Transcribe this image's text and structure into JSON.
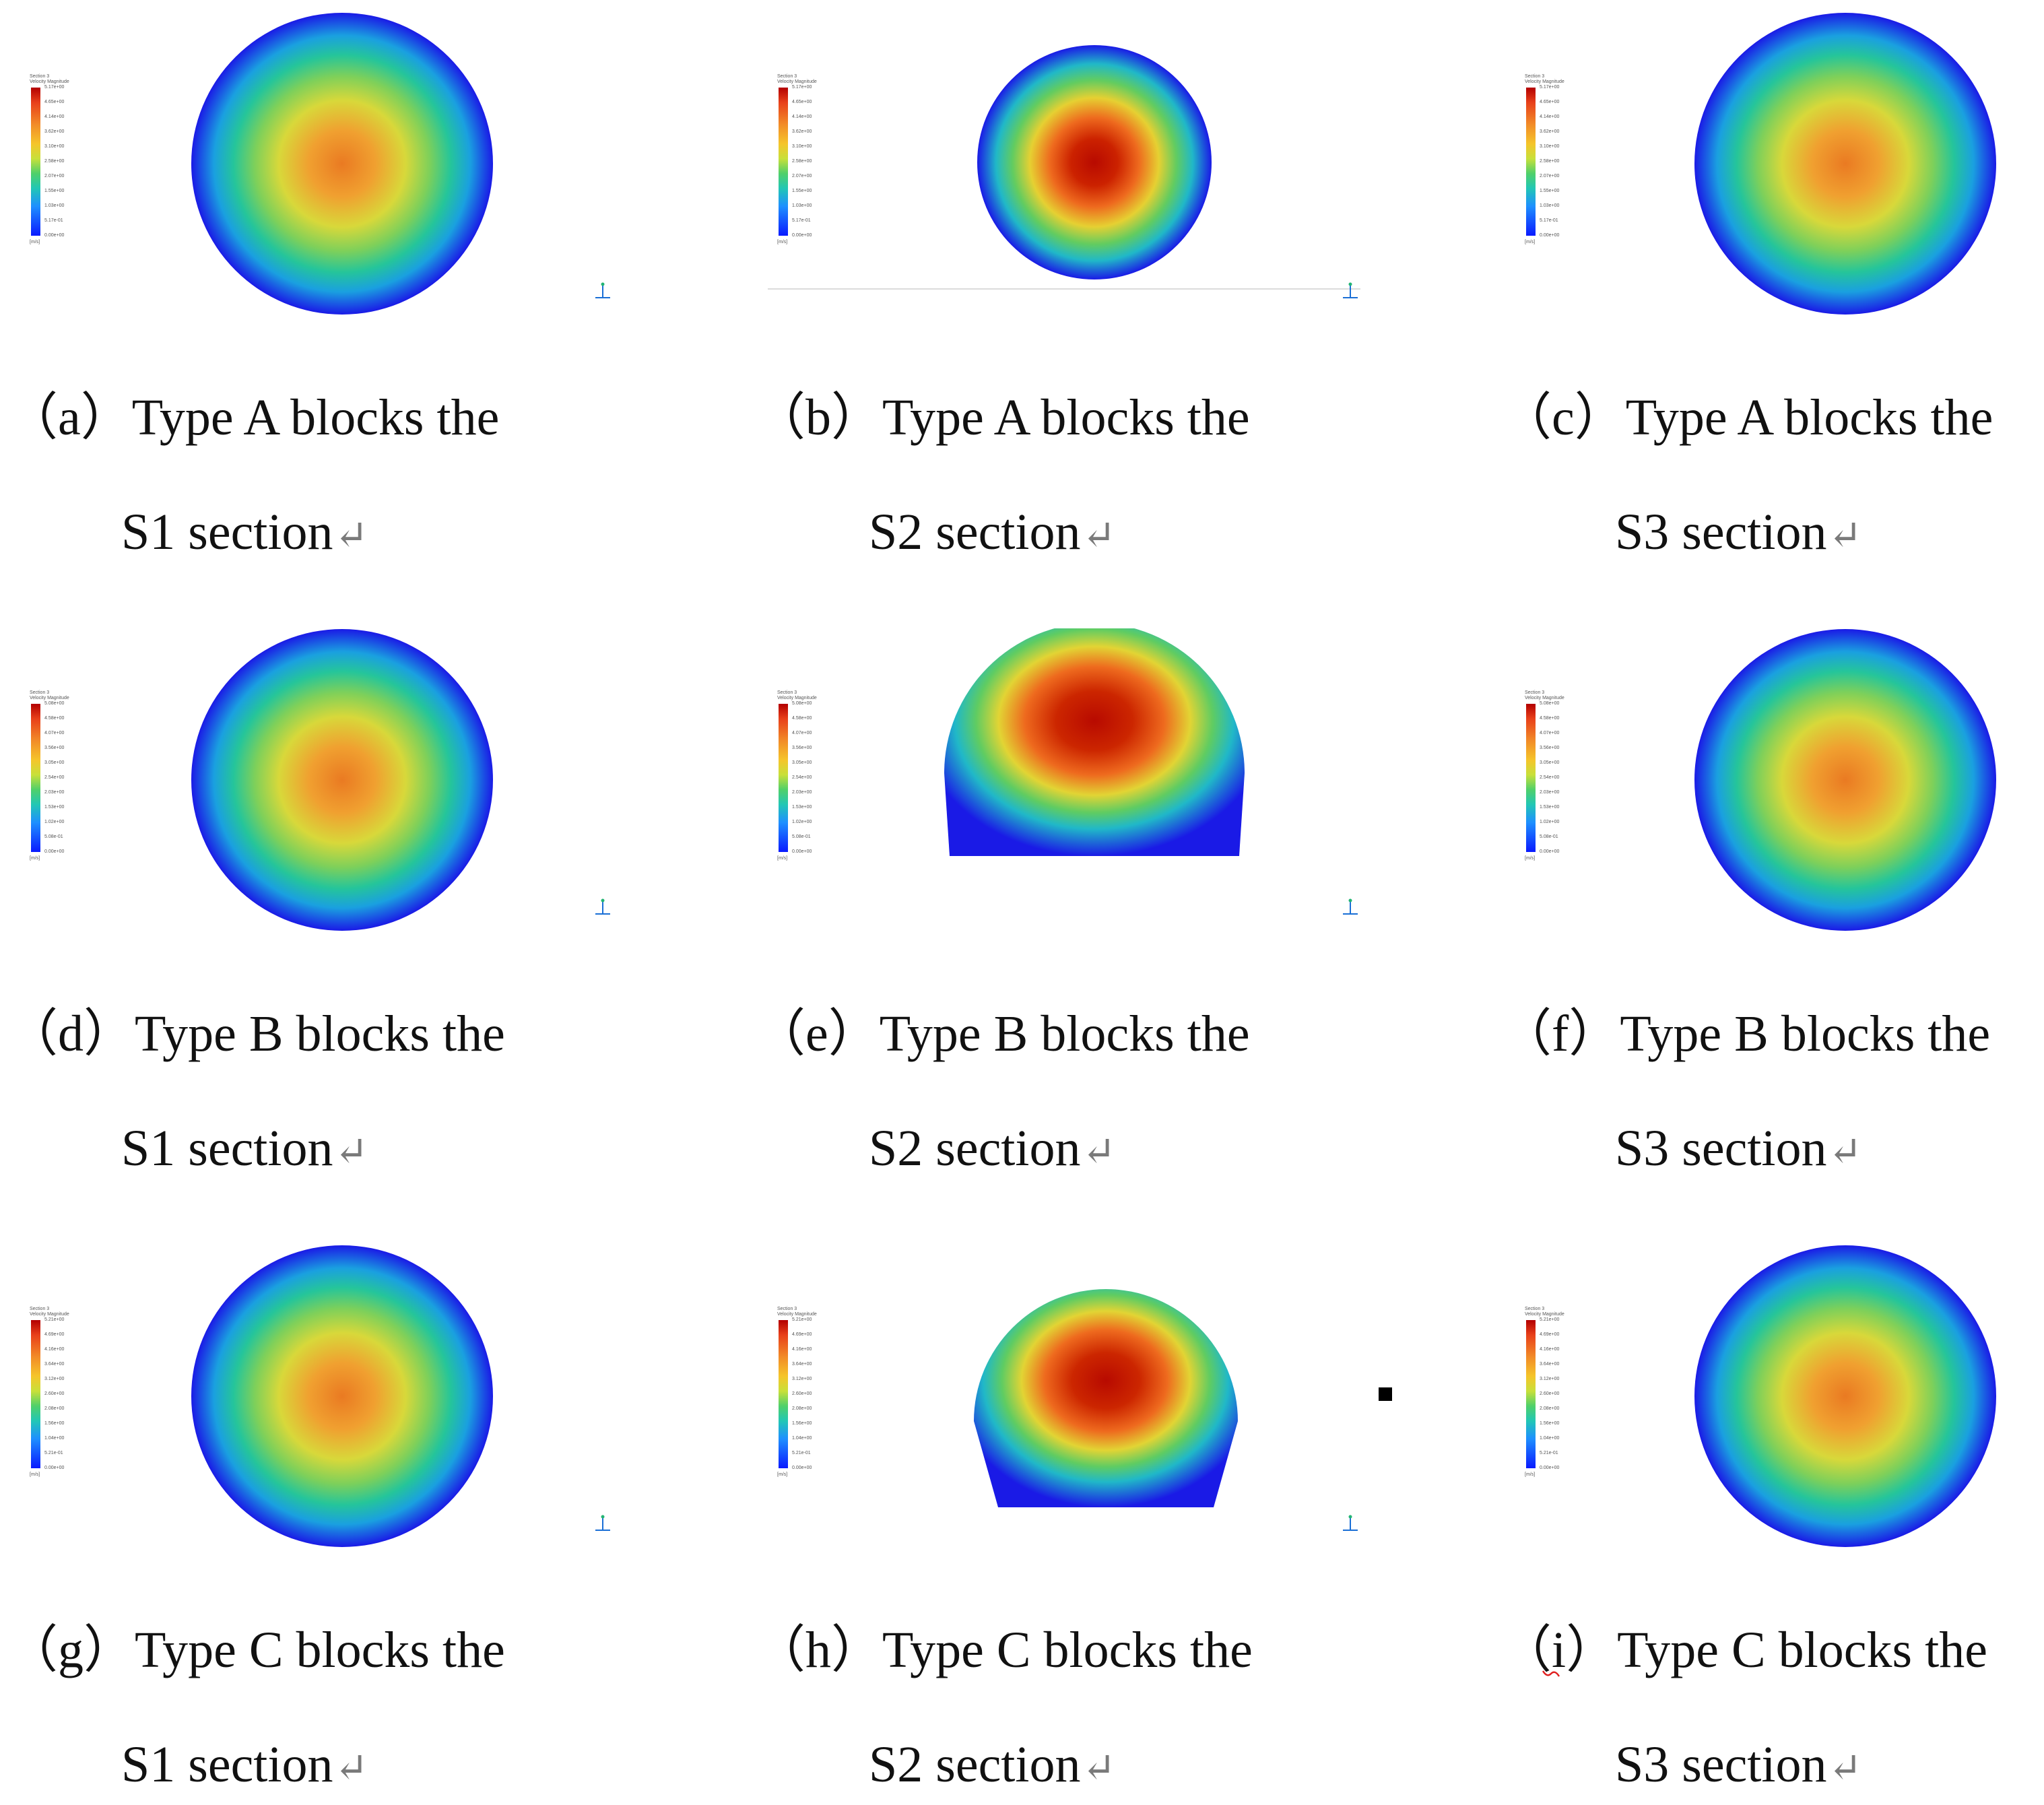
{
  "legend_title": "Section 3\nVelocity Magnitude",
  "legend_unit": "[m/s]",
  "panels": [
    {
      "id": "a",
      "shape": "circle",
      "legend": [
        "5.17e+00",
        "4.65e+00",
        "4.14e+00",
        "3.62e+00",
        "3.10e+00",
        "2.58e+00",
        "2.07e+00",
        "1.55e+00",
        "1.03e+00",
        "5.17e-01",
        "0.00e+00"
      ],
      "caption": {
        "label": "（a）",
        "line1": "Type A blocks the",
        "line2": "S1 section",
        "return_mark": "↵"
      }
    },
    {
      "id": "b",
      "shape": "circle-small",
      "legend": [
        "5.17e+00",
        "4.65e+00",
        "4.14e+00",
        "3.62e+00",
        "3.10e+00",
        "2.58e+00",
        "2.07e+00",
        "1.55e+00",
        "1.03e+00",
        "5.17e-01",
        "0.00e+00"
      ],
      "caption": {
        "label": "（b）",
        "line1": "Type A blocks the",
        "line2": "S2 section",
        "return_mark": "↵"
      }
    },
    {
      "id": "c",
      "shape": "circle",
      "legend": [
        "5.17e+00",
        "4.65e+00",
        "4.14e+00",
        "3.62e+00",
        "3.10e+00",
        "2.58e+00",
        "2.07e+00",
        "1.55e+00",
        "1.03e+00",
        "5.17e-01",
        "0.00e+00"
      ],
      "caption": {
        "label": "（c）",
        "line1": "Type A blocks the",
        "line2": "S3 section",
        "return_mark": "↵"
      }
    },
    {
      "id": "d",
      "shape": "circle",
      "legend": [
        "5.08e+00",
        "4.58e+00",
        "4.07e+00",
        "3.56e+00",
        "3.05e+00",
        "2.54e+00",
        "2.03e+00",
        "1.53e+00",
        "1.02e+00",
        "5.08e-01",
        "0.00e+00"
      ],
      "caption": {
        "label": "（d）",
        "line1": "Type B blocks the",
        "line2": "S1 section",
        "return_mark": "↵"
      }
    },
    {
      "id": "e",
      "shape": "dome-wide",
      "legend": [
        "5.08e+00",
        "4.58e+00",
        "4.07e+00",
        "3.56e+00",
        "3.05e+00",
        "2.54e+00",
        "2.03e+00",
        "1.53e+00",
        "1.02e+00",
        "5.08e-01",
        "0.00e+00"
      ],
      "caption": {
        "label": "（e）",
        "line1": "Type B blocks the",
        "line2": "S2 section",
        "return_mark": "↵"
      }
    },
    {
      "id": "f",
      "shape": "circle",
      "legend": [
        "5.08e+00",
        "4.58e+00",
        "4.07e+00",
        "3.56e+00",
        "3.05e+00",
        "2.54e+00",
        "2.03e+00",
        "1.53e+00",
        "1.02e+00",
        "5.08e-01",
        "0.00e+00"
      ],
      "caption": {
        "label": "（f）",
        "line1": "Type B blocks the",
        "line2": "S3 section",
        "return_mark": "↵"
      }
    },
    {
      "id": "g",
      "shape": "circle",
      "legend": [
        "5.21e+00",
        "4.69e+00",
        "4.16e+00",
        "3.64e+00",
        "3.12e+00",
        "2.60e+00",
        "2.08e+00",
        "1.56e+00",
        "1.04e+00",
        "5.21e-01",
        "0.00e+00"
      ],
      "caption": {
        "label": "（g）",
        "line1": "Type C blocks the",
        "line2": "S1 section",
        "return_mark": "↵"
      }
    },
    {
      "id": "h",
      "shape": "dome",
      "legend": [
        "5.21e+00",
        "4.69e+00",
        "4.16e+00",
        "3.64e+00",
        "3.12e+00",
        "2.60e+00",
        "2.08e+00",
        "1.56e+00",
        "1.04e+00",
        "5.21e-01",
        "0.00e+00"
      ],
      "caption": {
        "label": "（h）",
        "line1": "Type C blocks the",
        "line2": "S2 section",
        "return_mark": "↵"
      }
    },
    {
      "id": "i",
      "shape": "circle",
      "legend": [
        "5.21e+00",
        "4.69e+00",
        "4.16e+00",
        "3.64e+00",
        "3.12e+00",
        "2.60e+00",
        "2.08e+00",
        "1.56e+00",
        "1.04e+00",
        "5.21e-01",
        "0.00e+00"
      ],
      "caption": {
        "label": "（i）",
        "line1": "Type C blocks the",
        "line2": "S3 section",
        "return_mark": "↵"
      }
    }
  ]
}
